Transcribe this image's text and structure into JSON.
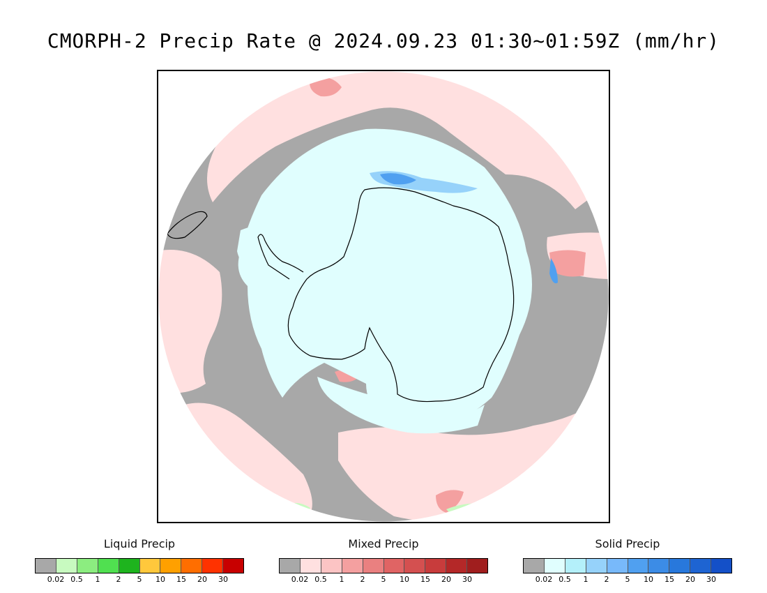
{
  "title": "CMORPH-2 Precip Rate @ 2024.09.23 01:30~01:59Z (mm/hr)",
  "legends": [
    {
      "title": "Liquid Precip",
      "ticks": [
        "0.02",
        "0.5",
        "1",
        "2",
        "5",
        "10",
        "15",
        "20",
        "30"
      ],
      "colors": [
        "#a8a8a8",
        "#c8fac0",
        "#8ced80",
        "#50e050",
        "#1eb41e",
        "#ffc83c",
        "#ffa000",
        "#ff6e00",
        "#ff3200",
        "#c80000"
      ]
    },
    {
      "title": "Mixed Precip",
      "ticks": [
        "0.02",
        "0.5",
        "1",
        "2",
        "5",
        "10",
        "15",
        "20",
        "30"
      ],
      "colors": [
        "#a8a8a8",
        "#ffe0e0",
        "#fcc4c4",
        "#f4a0a0",
        "#ea8080",
        "#e06464",
        "#d45050",
        "#c83c3c",
        "#b42828",
        "#a01e1e"
      ]
    },
    {
      "title": "Solid Precip",
      "ticks": [
        "0.02",
        "0.5",
        "1",
        "2",
        "5",
        "10",
        "15",
        "20",
        "30"
      ],
      "colors": [
        "#a8a8a8",
        "#e0fefe",
        "#b4f0fa",
        "#96d2fa",
        "#78b9fa",
        "#50a0f0",
        "#3c8ce6",
        "#2878dc",
        "#1e64d2",
        "#1450c8"
      ]
    }
  ],
  "map": {
    "projection": "south polar stereographic",
    "colors": {
      "no_precip": "#a8a8a8",
      "mixed_light": "#ffe0e0",
      "mixed_moderate": "#f4a0a0",
      "mixed_heavy": "#e06464",
      "solid_light": "#e0fefe",
      "solid_moderate": "#96d2fa",
      "solid_heavy": "#50a0f0",
      "liquid_light": "#c8fac0",
      "coastline": "#000000"
    }
  }
}
